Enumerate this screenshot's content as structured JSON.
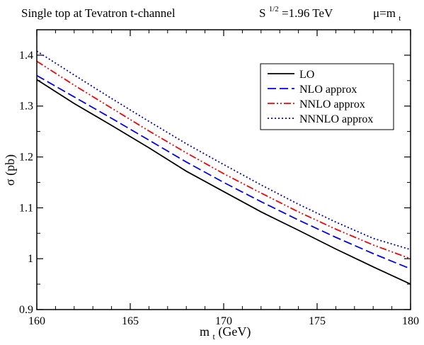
{
  "chart_data": {
    "type": "line",
    "title": {
      "process": "Single top at  Tevatron   t-channel",
      "energy_base": "S",
      "energy_sup": "1/2",
      "energy_value": "=1.96 TeV",
      "scale_base": "μ=m",
      "scale_sub": "t"
    },
    "xlabel": {
      "base": "m",
      "sub": "t",
      "rest": " (GeV)"
    },
    "ylabel": "σ  (pb)",
    "xlim": [
      160,
      180
    ],
    "ylim": [
      0.9,
      1.45
    ],
    "xticks": [
      160,
      165,
      170,
      175,
      180
    ],
    "yticks": [
      0.9,
      1.0,
      1.1,
      1.2,
      1.3,
      1.4
    ],
    "xtick_labels": [
      "160",
      "165",
      "170",
      "175",
      "180"
    ],
    "ytick_labels": [
      "0.9",
      "1",
      "1.1",
      "1.2",
      "1.3",
      "1.4"
    ],
    "legend_position": "top-right",
    "grid": false,
    "x": [
      160,
      162,
      164,
      166,
      168,
      170,
      172,
      174,
      176,
      178,
      180
    ],
    "series": [
      {
        "name": "LO",
        "color": "#000000",
        "dash": "solid",
        "values": [
          1.352,
          1.305,
          1.262,
          1.218,
          1.172,
          1.132,
          1.092,
          1.056,
          1.019,
          0.984,
          0.95
        ]
      },
      {
        "name": "NLO approx",
        "color": "#0000ff",
        "dash": "dashed",
        "values": [
          1.36,
          1.318,
          1.276,
          1.233,
          1.19,
          1.15,
          1.112,
          1.076,
          1.042,
          1.01,
          0.98
        ]
      },
      {
        "name": "NNLO approx",
        "color": "#ff0000",
        "dash": "dash-dot-dot",
        "values": [
          1.388,
          1.341,
          1.296,
          1.251,
          1.208,
          1.167,
          1.129,
          1.092,
          1.058,
          1.027,
          1.0
        ]
      },
      {
        "name": "NNNLO approx",
        "color": "#0000cc",
        "dash": "dotted",
        "values": [
          1.408,
          1.361,
          1.315,
          1.27,
          1.226,
          1.185,
          1.145,
          1.107,
          1.072,
          1.04,
          1.018
        ]
      }
    ]
  }
}
